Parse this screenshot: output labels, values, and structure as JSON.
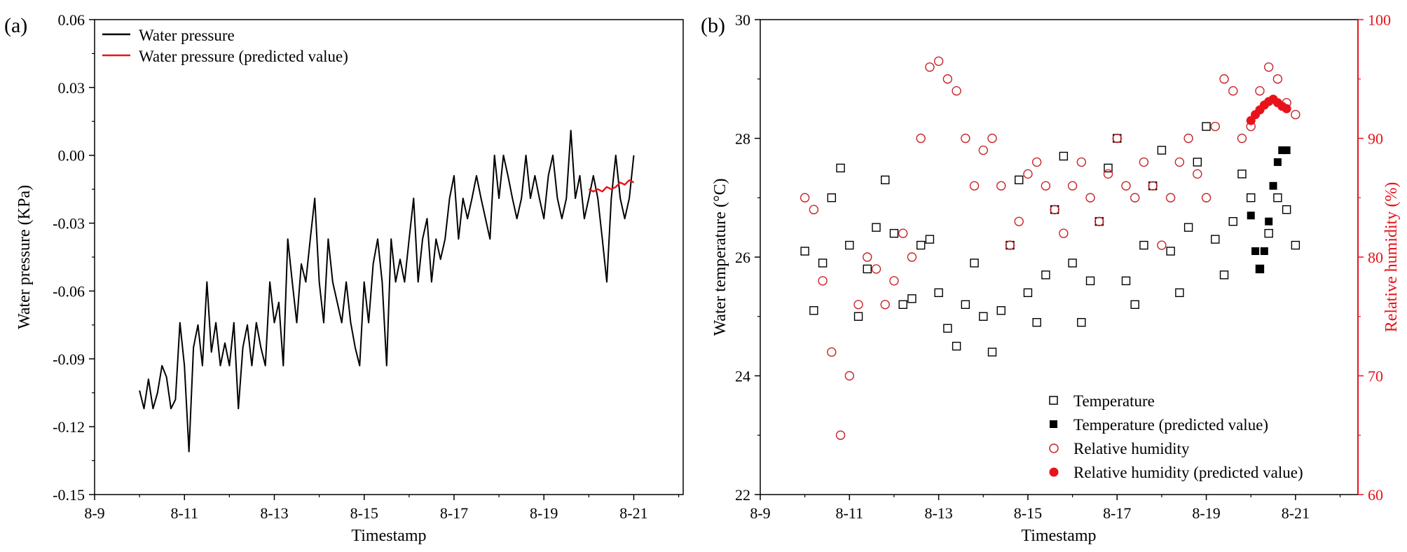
{
  "colors": {
    "black": "#000000",
    "red": "#e8131a",
    "red_marker": "#c8242a",
    "axis_right": "#e8131a"
  },
  "chart_data": [
    {
      "panel_label": "(a)",
      "type": "line",
      "title": "",
      "xlabel": "Timestamp",
      "ylabel": "Water pressure (KPa)",
      "xlim": [
        9,
        22.1
      ],
      "ylim": [
        -0.15,
        0.06
      ],
      "x_tick_values": [
        9,
        11,
        13,
        15,
        17,
        19,
        21
      ],
      "x_tick_labels": [
        "8-9",
        "8-11",
        "8-13",
        "8-15",
        "8-17",
        "8-19",
        "8-21"
      ],
      "y_tick_values": [
        -0.15,
        -0.12,
        -0.09,
        -0.06,
        -0.03,
        0.0,
        0.03,
        0.06
      ],
      "y_tick_labels": [
        "-0.15",
        "-0.12",
        "-0.09",
        "-0.06",
        "-0.03",
        "0.00",
        "0.03",
        "0.06"
      ],
      "legend_position": "top-left",
      "series": [
        {
          "name": "Water pressure",
          "color": "#000000",
          "x": [
            10.0,
            10.1,
            10.2,
            10.3,
            10.4,
            10.5,
            10.6,
            10.7,
            10.8,
            10.9,
            11.0,
            11.1,
            11.2,
            11.3,
            11.4,
            11.5,
            11.6,
            11.7,
            11.8,
            11.9,
            12.0,
            12.1,
            12.2,
            12.3,
            12.4,
            12.5,
            12.6,
            12.7,
            12.8,
            12.9,
            13.0,
            13.1,
            13.2,
            13.3,
            13.4,
            13.5,
            13.6,
            13.7,
            13.8,
            13.9,
            14.0,
            14.1,
            14.2,
            14.3,
            14.4,
            14.5,
            14.6,
            14.7,
            14.8,
            14.9,
            15.0,
            15.1,
            15.2,
            15.3,
            15.4,
            15.5,
            15.6,
            15.7,
            15.8,
            15.9,
            16.0,
            16.1,
            16.2,
            16.3,
            16.4,
            16.5,
            16.6,
            16.7,
            16.8,
            16.9,
            17.0,
            17.1,
            17.2,
            17.3,
            17.4,
            17.5,
            17.6,
            17.7,
            17.8,
            17.9,
            18.0,
            18.1,
            18.2,
            18.3,
            18.4,
            18.5,
            18.6,
            18.7,
            18.8,
            18.9,
            19.0,
            19.1,
            19.2,
            19.3,
            19.4,
            19.5,
            19.6,
            19.7,
            19.8,
            19.9,
            20.0,
            20.1,
            20.2,
            20.3,
            20.4,
            20.5,
            20.6,
            20.7,
            20.8,
            20.9,
            21.0
          ],
          "y": [
            -0.104,
            -0.112,
            -0.099,
            -0.112,
            -0.105,
            -0.093,
            -0.098,
            -0.112,
            -0.108,
            -0.074,
            -0.093,
            -0.131,
            -0.085,
            -0.075,
            -0.093,
            -0.056,
            -0.087,
            -0.074,
            -0.093,
            -0.083,
            -0.093,
            -0.074,
            -0.112,
            -0.085,
            -0.075,
            -0.093,
            -0.074,
            -0.085,
            -0.093,
            -0.056,
            -0.074,
            -0.065,
            -0.093,
            -0.037,
            -0.056,
            -0.074,
            -0.048,
            -0.056,
            -0.037,
            -0.019,
            -0.056,
            -0.074,
            -0.037,
            -0.056,
            -0.065,
            -0.074,
            -0.056,
            -0.074,
            -0.085,
            -0.093,
            -0.056,
            -0.074,
            -0.048,
            -0.037,
            -0.056,
            -0.093,
            -0.037,
            -0.056,
            -0.046,
            -0.056,
            -0.037,
            -0.019,
            -0.056,
            -0.037,
            -0.028,
            -0.056,
            -0.037,
            -0.046,
            -0.037,
            -0.019,
            -0.009,
            -0.037,
            -0.019,
            -0.028,
            -0.019,
            -0.009,
            -0.019,
            -0.028,
            -0.037,
            0.0,
            -0.019,
            0.0,
            -0.009,
            -0.019,
            -0.028,
            -0.019,
            0.0,
            -0.019,
            -0.009,
            -0.019,
            -0.028,
            -0.009,
            0.0,
            -0.019,
            -0.028,
            -0.019,
            0.011,
            -0.019,
            -0.009,
            -0.028,
            -0.019,
            -0.009,
            -0.019,
            -0.037,
            -0.056,
            -0.019,
            0.0,
            -0.019,
            -0.028,
            -0.019,
            0.0
          ]
        },
        {
          "name": "Water pressure (predicted value)",
          "color": "#e8131a",
          "x": [
            20.0,
            20.1,
            20.2,
            20.3,
            20.4,
            20.5,
            20.6,
            20.7,
            20.8,
            20.9,
            21.0
          ],
          "y": [
            -0.015,
            -0.016,
            -0.015,
            -0.016,
            -0.014,
            -0.015,
            -0.014,
            -0.012,
            -0.013,
            -0.011,
            -0.012
          ]
        }
      ]
    },
    {
      "panel_label": "(b)",
      "type": "scatter",
      "title": "",
      "xlabel": "Timestamp",
      "ylabel": "Water temperature (°C)",
      "y2label": "Relative humidity (%)",
      "xlim": [
        9,
        22.4
      ],
      "ylim": [
        22,
        30
      ],
      "y2lim": [
        60,
        100
      ],
      "x_tick_values": [
        9,
        11,
        13,
        15,
        17,
        19,
        21
      ],
      "x_tick_labels": [
        "8-9",
        "8-11",
        "8-13",
        "8-15",
        "8-17",
        "8-19",
        "8-21"
      ],
      "y_tick_values": [
        22,
        24,
        26,
        28,
        30
      ],
      "y_tick_labels": [
        "22",
        "24",
        "26",
        "28",
        "30"
      ],
      "y2_tick_values": [
        60,
        70,
        80,
        90,
        100
      ],
      "y2_tick_labels": [
        "60",
        "70",
        "80",
        "90",
        "100"
      ],
      "legend_position": "bottom-right",
      "series": [
        {
          "name": "Temperature",
          "axis": "left",
          "marker": "open-square",
          "color": "#000000",
          "x": [
            10.0,
            10.2,
            10.4,
            10.6,
            10.8,
            11.0,
            11.2,
            11.4,
            11.6,
            11.8,
            12.0,
            12.2,
            12.4,
            12.6,
            12.8,
            13.0,
            13.2,
            13.4,
            13.6,
            13.8,
            14.0,
            14.2,
            14.4,
            14.6,
            14.8,
            15.0,
            15.2,
            15.4,
            15.6,
            15.8,
            16.0,
            16.2,
            16.4,
            16.6,
            16.8,
            17.0,
            17.2,
            17.4,
            17.6,
            17.8,
            18.0,
            18.2,
            18.4,
            18.6,
            18.8,
            19.0,
            19.2,
            19.4,
            19.6,
            19.8,
            20.0,
            20.2,
            20.4,
            20.6,
            20.8,
            21.0
          ],
          "y": [
            26.1,
            25.1,
            25.9,
            27.0,
            27.5,
            26.2,
            25.0,
            25.8,
            26.5,
            27.3,
            26.4,
            25.2,
            25.3,
            26.2,
            26.3,
            25.4,
            24.8,
            24.5,
            25.2,
            25.9,
            25.0,
            24.4,
            25.1,
            26.2,
            27.3,
            25.4,
            24.9,
            25.7,
            26.8,
            27.7,
            25.9,
            24.9,
            25.6,
            26.6,
            27.5,
            28.0,
            25.6,
            25.2,
            26.2,
            27.2,
            27.8,
            26.1,
            25.4,
            26.5,
            27.6,
            28.2,
            26.3,
            25.7,
            26.6,
            27.4,
            27.0,
            25.8,
            26.4,
            27.0,
            26.8,
            26.2
          ]
        },
        {
          "name": "Temperature (predicted value)",
          "axis": "left",
          "marker": "filled-square",
          "color": "#000000",
          "x": [
            20.0,
            20.1,
            20.2,
            20.3,
            20.4,
            20.5,
            20.6,
            20.7,
            20.8
          ],
          "y": [
            26.7,
            26.1,
            25.8,
            26.1,
            26.6,
            27.2,
            27.6,
            27.8,
            27.8
          ]
        },
        {
          "name": "Relative humidity",
          "axis": "right",
          "marker": "open-circle",
          "color": "#c8242a",
          "x": [
            10.0,
            10.2,
            10.4,
            10.6,
            10.8,
            11.0,
            11.2,
            11.4,
            11.6,
            11.8,
            12.0,
            12.2,
            12.4,
            12.6,
            12.8,
            13.0,
            13.2,
            13.4,
            13.6,
            13.8,
            14.0,
            14.2,
            14.4,
            14.6,
            14.8,
            15.0,
            15.2,
            15.4,
            15.6,
            15.8,
            16.0,
            16.2,
            16.4,
            16.6,
            16.8,
            17.0,
            17.2,
            17.4,
            17.6,
            17.8,
            18.0,
            18.2,
            18.4,
            18.6,
            18.8,
            19.0,
            19.2,
            19.4,
            19.6,
            19.8,
            20.0,
            20.2,
            20.4,
            20.6,
            20.8,
            21.0
          ],
          "y": [
            85.0,
            84.0,
            78.0,
            72.0,
            65.0,
            70.0,
            76.0,
            80.0,
            79.0,
            76.0,
            78.0,
            82.0,
            80.0,
            90.0,
            96.0,
            96.5,
            95.0,
            94.0,
            90.0,
            86.0,
            89.0,
            90.0,
            86.0,
            81.0,
            83.0,
            87.0,
            88.0,
            86.0,
            84.0,
            82.0,
            86.0,
            88.0,
            85.0,
            83.0,
            87.0,
            90.0,
            86.0,
            85.0,
            88.0,
            86.0,
            81.0,
            85.0,
            88.0,
            90.0,
            87.0,
            85.0,
            91.0,
            95.0,
            94.0,
            90.0,
            91.0,
            94.0,
            96.0,
            95.0,
            93.0,
            92.0
          ]
        },
        {
          "name": "Relative humidity (predicted value)",
          "axis": "right",
          "marker": "filled-circle",
          "color": "#e8131a",
          "x": [
            20.0,
            20.1,
            20.2,
            20.3,
            20.4,
            20.5,
            20.6,
            20.7,
            20.8
          ],
          "y": [
            91.5,
            92.0,
            92.4,
            92.8,
            93.1,
            93.3,
            93.0,
            92.7,
            92.5
          ]
        }
      ]
    }
  ]
}
